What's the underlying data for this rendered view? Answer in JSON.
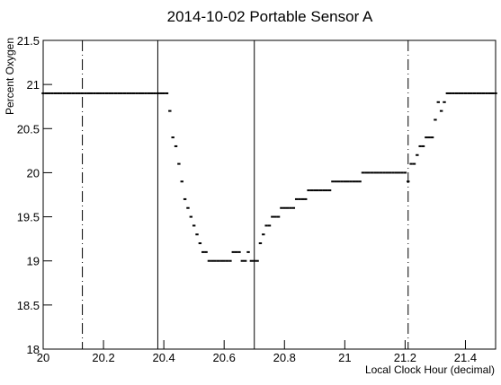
{
  "chart_data": {
    "type": "scatter",
    "title": "2014-10-02  Portable Sensor A",
    "x_label": "Local Clock Hour (decimal)",
    "y_label": "Percent Oxygen",
    "color": "#000000",
    "xlim": [
      20,
      21.5
    ],
    "xticks": [
      20,
      20.2,
      20.4,
      20.6,
      20.8,
      21,
      21.2,
      21.4
    ],
    "ylim": [
      18,
      21.5
    ],
    "yticks": [
      18,
      18.5,
      19,
      19.5,
      20,
      20.5,
      21,
      21.5
    ],
    "vertical_lines": [
      {
        "x": 20.13,
        "style": "dashdot"
      },
      {
        "x": 20.38,
        "style": "solid"
      },
      {
        "x": 20.7,
        "style": "solid"
      },
      {
        "x": 21.21,
        "style": "dashdot"
      }
    ],
    "x": [
      20,
      20.01,
      20.02,
      20.03,
      20.04,
      20.05,
      20.06,
      20.07,
      20.08,
      20.09,
      20.1,
      20.11,
      20.12,
      20.13,
      20.14,
      20.15,
      20.16,
      20.17,
      20.18,
      20.19,
      20.2,
      20.21,
      20.22,
      20.23,
      20.24,
      20.25,
      20.26,
      20.27,
      20.28,
      20.29,
      20.3,
      20.31,
      20.32,
      20.33,
      20.34,
      20.35,
      20.36,
      20.37,
      20.38,
      20.39,
      20.4,
      20.41,
      20.42,
      20.43,
      20.44,
      20.45,
      20.46,
      20.47,
      20.48,
      20.49,
      20.5,
      20.51,
      20.52,
      20.53,
      20.54,
      20.55,
      20.56,
      20.57,
      20.58,
      20.59,
      20.6,
      20.61,
      20.62,
      20.63,
      20.64,
      20.65,
      20.66,
      20.67,
      20.68,
      20.69,
      20.7,
      20.71,
      20.72,
      20.73,
      20.74,
      20.75,
      20.76,
      20.77,
      20.78,
      20.79,
      20.8,
      20.81,
      20.82,
      20.83,
      20.84,
      20.85,
      20.86,
      20.87,
      20.88,
      20.89,
      20.9,
      20.91,
      20.92,
      20.93,
      20.94,
      20.95,
      20.96,
      20.97,
      20.98,
      20.99,
      21,
      21.01,
      21.02,
      21.03,
      21.04,
      21.05,
      21.06,
      21.07,
      21.08,
      21.09,
      21.1,
      21.11,
      21.12,
      21.13,
      21.14,
      21.15,
      21.16,
      21.17,
      21.18,
      21.19,
      21.2,
      21.21,
      21.22,
      21.23,
      21.24,
      21.25,
      21.26,
      21.27,
      21.28,
      21.29,
      21.3,
      21.31,
      21.32,
      21.33,
      21.34,
      21.35,
      21.36,
      21.37,
      21.38,
      21.39,
      21.4,
      21.41,
      21.42,
      21.43,
      21.44,
      21.45,
      21.46,
      21.47,
      21.48,
      21.49,
      21.5
    ],
    "values": [
      20.9,
      20.9,
      20.9,
      20.9,
      20.9,
      20.9,
      20.9,
      20.9,
      20.9,
      20.9,
      20.9,
      20.9,
      20.9,
      20.9,
      20.9,
      20.9,
      20.9,
      20.9,
      20.9,
      20.9,
      20.9,
      20.9,
      20.9,
      20.9,
      20.9,
      20.9,
      20.9,
      20.9,
      20.9,
      20.9,
      20.9,
      20.9,
      20.9,
      20.9,
      20.9,
      20.9,
      20.9,
      20.9,
      20.9,
      20.9,
      20.9,
      20.9,
      20.7,
      20.4,
      20.3,
      20.1,
      19.9,
      19.7,
      19.6,
      19.5,
      19.4,
      19.3,
      19.2,
      19.1,
      19.1,
      19,
      19,
      19,
      19,
      19,
      19,
      19,
      19,
      19.1,
      19.1,
      19.1,
      19,
      19,
      19.1,
      19,
      19,
      19,
      19.2,
      19.3,
      19.4,
      19.4,
      19.5,
      19.5,
      19.5,
      19.6,
      19.6,
      19.6,
      19.6,
      19.6,
      19.7,
      19.7,
      19.7,
      19.7,
      19.8,
      19.8,
      19.8,
      19.8,
      19.8,
      19.8,
      19.8,
      19.8,
      19.9,
      19.9,
      19.9,
      19.9,
      19.9,
      19.9,
      19.9,
      19.9,
      19.9,
      19.9,
      20,
      20,
      20,
      20,
      20,
      20,
      20,
      20,
      20,
      20,
      20,
      20,
      20,
      20,
      20,
      19.9,
      20.1,
      20.1,
      20.2,
      20.3,
      20.3,
      20.4,
      20.4,
      20.4,
      20.6,
      20.8,
      20.7,
      20.8,
      20.9,
      20.9,
      20.9,
      20.9,
      20.9,
      20.9,
      20.9,
      20.9,
      20.9,
      20.9,
      20.9,
      20.9,
      20.9,
      20.9,
      20.9,
      20.9,
      20.9
    ]
  }
}
